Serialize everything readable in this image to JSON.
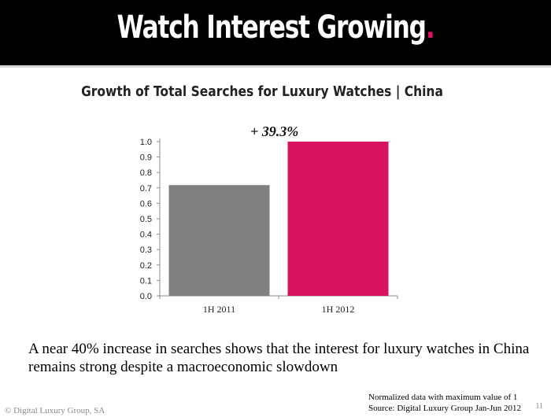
{
  "header": {
    "title": "Watch Interest Growing",
    "dot": ".",
    "accent_color": "#e0125f"
  },
  "chart_data": {
    "type": "bar",
    "title": "Growth of Total Searches for Luxury Watches | China",
    "categories": [
      "1H 2011",
      "1H 2012"
    ],
    "values": [
      0.718,
      1.0
    ],
    "colors": [
      "#808080",
      "#d9125e"
    ],
    "ylim": [
      0,
      1.0
    ],
    "yticks": [
      "0.0",
      "0.1",
      "0.2",
      "0.3",
      "0.4",
      "0.5",
      "0.6",
      "0.7",
      "0.8",
      "0.9",
      "1.0"
    ],
    "annotation": "+ 39.3%",
    "grid": false,
    "legend": "none"
  },
  "caption": "A near 40% increase in searches shows that the interest for luxury watches in China remains strong despite a macroeconomic slowdown",
  "footer": {
    "copyright": "© Digital Luxury Group, SA",
    "note": "Normalized data with maximum value of 1",
    "source": "Source: Digital Luxury Group Jan-Jun 2012",
    "page": "11"
  }
}
